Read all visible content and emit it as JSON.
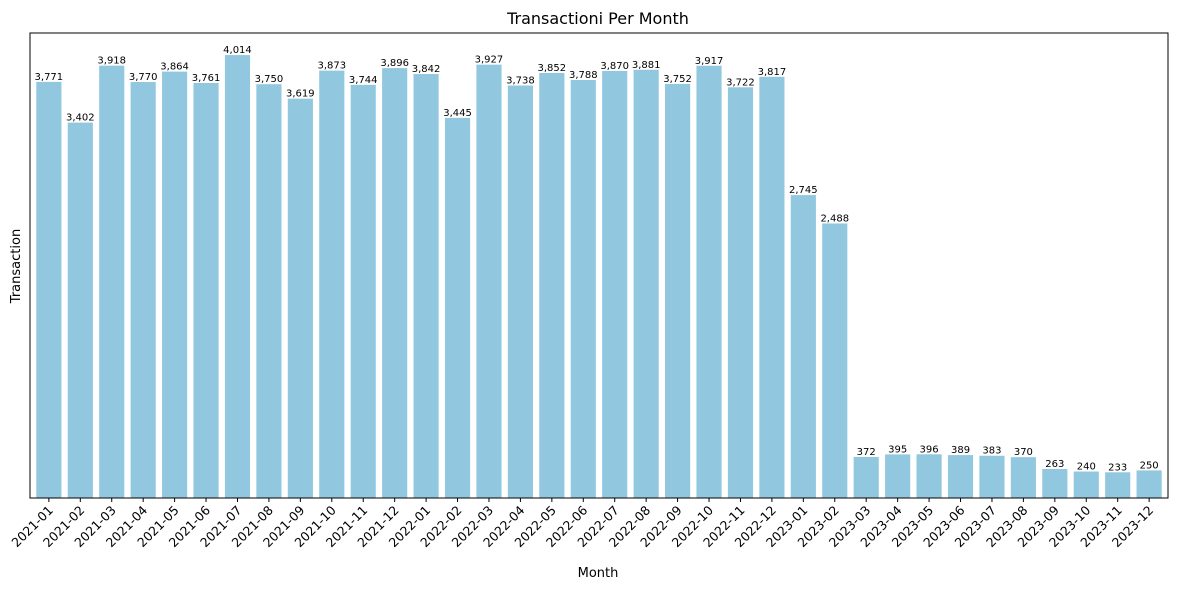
{
  "chart_data": {
    "type": "bar",
    "title": "Transactioni Per Month",
    "xlabel": "Month",
    "ylabel": "Transaction",
    "ylim": [
      0,
      4214
    ],
    "grid": false,
    "yticks_visible": false,
    "bar_color": "#92c8df",
    "categories": [
      "2021-01",
      "2021-02",
      "2021-03",
      "2021-04",
      "2021-05",
      "2021-06",
      "2021-07",
      "2021-08",
      "2021-09",
      "2021-10",
      "2021-11",
      "2021-12",
      "2022-01",
      "2022-02",
      "2022-03",
      "2022-04",
      "2022-05",
      "2022-06",
      "2022-07",
      "2022-08",
      "2022-09",
      "2022-10",
      "2022-11",
      "2022-12",
      "2023-01",
      "2023-02",
      "2023-03",
      "2023-04",
      "2023-05",
      "2023-06",
      "2023-07",
      "2023-08",
      "2023-09",
      "2023-10",
      "2023-11",
      "2023-12"
    ],
    "values": [
      3771,
      3402,
      3918,
      3770,
      3864,
      3761,
      4014,
      3750,
      3619,
      3873,
      3744,
      3896,
      3842,
      3445,
      3927,
      3738,
      3852,
      3788,
      3870,
      3881,
      3752,
      3917,
      3722,
      3817,
      2745,
      2488,
      372,
      395,
      396,
      389,
      383,
      370,
      263,
      240,
      233,
      250
    ],
    "value_labels": [
      "3,771",
      "3,402",
      "3,918",
      "3,770",
      "3,864",
      "3,761",
      "4,014",
      "3,750",
      "3,619",
      "3,873",
      "3,744",
      "3,896",
      "3,842",
      "3,445",
      "3,927",
      "3,738",
      "3,852",
      "3,788",
      "3,870",
      "3,881",
      "3,752",
      "3,917",
      "3,722",
      "3,817",
      "2,745",
      "2,488",
      "372",
      "395",
      "396",
      "389",
      "383",
      "370",
      "263",
      "240",
      "233",
      "250"
    ]
  }
}
